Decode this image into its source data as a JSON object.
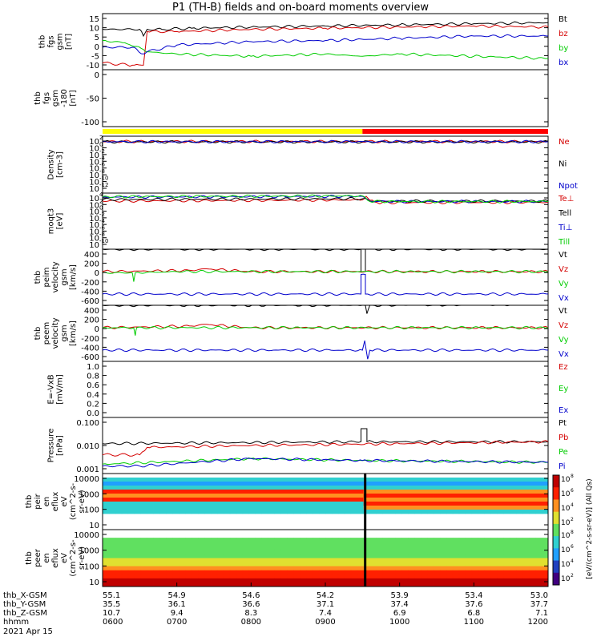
{
  "title": "P1 (TH-B) fields and on-board moments overview",
  "date": "2021 Apr 15",
  "colors": {
    "black": "#000000",
    "red": "#d40000",
    "green": "#00cc00",
    "blue": "#0000cc",
    "yellow": "#ffff00",
    "barred": "#ff0000"
  },
  "chart_data": [
    {
      "type": "line",
      "panel": "fgs",
      "ylabel": [
        "thb",
        "fgs",
        "gsm",
        "[nT]"
      ],
      "ylim": [
        -10,
        15
      ],
      "yticks": [
        "15",
        "10",
        "5",
        "0",
        "-5",
        "-10"
      ],
      "series": [
        {
          "name": "Bt",
          "color": "black",
          "x": [
            6.0,
            6.5,
            6.55,
            6.6,
            6.8,
            7.2,
            8.0,
            9.0,
            10.0,
            11.0,
            12.0
          ],
          "y": [
            8,
            8,
            5,
            8,
            8,
            8.5,
            9,
            9.5,
            10,
            10.5,
            11
          ]
        },
        {
          "name": "bz",
          "color": "red",
          "x": [
            6.0,
            6.4,
            6.55,
            6.6,
            7.0,
            8.0,
            9.0,
            10.0,
            11.0,
            12.0
          ],
          "y": [
            -7,
            -8,
            -8,
            7,
            7,
            8,
            8.5,
            9,
            9.5,
            9
          ]
        },
        {
          "name": "by",
          "color": "green",
          "x": [
            6.0,
            6.3,
            6.55,
            6.6,
            7.0,
            8.0,
            9.0,
            9.5,
            10.0,
            11.0,
            12.0
          ],
          "y": [
            3,
            2,
            -1,
            -2,
            -3,
            -4,
            -3,
            -4,
            -3,
            -4,
            -5
          ]
        },
        {
          "name": "bx",
          "color": "blue",
          "x": [
            6.0,
            6.4,
            6.55,
            6.6,
            7.0,
            8.0,
            9.0,
            10.0,
            11.0,
            12.0
          ],
          "y": [
            0,
            0,
            -3,
            -2,
            1,
            2.5,
            3,
            4,
            5,
            5
          ]
        }
      ]
    },
    {
      "type": "line",
      "panel": "fgs-sm",
      "ylabel": [
        "thb",
        "fgs",
        "gsm",
        "-180",
        "[nT]"
      ],
      "ylim": [
        -125,
        25
      ],
      "yticks": [
        "0",
        "-50",
        "-100"
      ],
      "series": []
    },
    {
      "type": "bar",
      "panel": "mode-bar",
      "segments": [
        {
          "from": 6.0,
          "to": 9.5,
          "color": "yellow"
        },
        {
          "from": 9.5,
          "to": 12.0,
          "color": "barred"
        }
      ]
    },
    {
      "type": "line",
      "panel": "density",
      "log": true,
      "ylabel": [
        "Density",
        "[cm-3]"
      ],
      "ylim": [
        -12,
        2
      ],
      "yticks": [
        "10",
        "10",
        "10",
        "10",
        "10",
        "10",
        "10",
        "10"
      ],
      "ytick_exponents": [
        "2",
        "0",
        "-2",
        "-4",
        "-6",
        "-8",
        "-10",
        "-12"
      ],
      "series": [
        {
          "name": "Ne",
          "color": "red",
          "x": [
            6.0,
            12.0
          ],
          "y": [
            0.7,
            0.7
          ]
        },
        {
          "name": "Ni",
          "color": "black",
          "x": [
            6.0,
            12.0
          ],
          "y": [
            0.6,
            0.6
          ]
        },
        {
          "name": "Npot",
          "color": "blue",
          "x": [
            6.0,
            12.0
          ],
          "y": [
            0.65,
            0.65
          ]
        }
      ]
    },
    {
      "type": "line",
      "panel": "temp",
      "log": true,
      "ylabel": [
        "moqt3",
        "[eV]"
      ],
      "ylim": [
        -10,
        4
      ],
      "yticks": [
        "10",
        "10",
        "10",
        "10",
        "10",
        "10",
        "10",
        "10"
      ],
      "ytick_exponents": [
        "4",
        "2",
        "0",
        "-2",
        "-4",
        "-6",
        "-8",
        "-10"
      ],
      "series": [
        {
          "name": "Te⊥",
          "color": "red",
          "x": [
            6.0,
            9.5,
            9.55,
            9.6,
            9.7,
            12.0
          ],
          "y": [
            2.0,
            2.3,
            3.2,
            2.2,
            1.6,
            1.7
          ]
        },
        {
          "name": "Tell",
          "color": "black",
          "x": [
            6.0,
            9.5,
            9.6,
            12.0
          ],
          "y": [
            2.4,
            2.6,
            2.0,
            2.0
          ]
        },
        {
          "name": "Ti⊥",
          "color": "blue",
          "x": [
            6.0,
            9.5,
            9.6,
            9.7,
            12.0
          ],
          "y": [
            3.0,
            3.2,
            2.0,
            1.9,
            1.9
          ]
        },
        {
          "name": "Till",
          "color": "green",
          "x": [
            6.0,
            9.5,
            9.6,
            12.0
          ],
          "y": [
            3.1,
            3.3,
            1.9,
            1.9
          ]
        }
      ]
    },
    {
      "type": "line",
      "panel": "peim",
      "ylabel": [
        "thb",
        "peim",
        "velocity",
        "gsm",
        "[km/s]"
      ],
      "ylim": [
        -600,
        400
      ],
      "yticks": [
        "400",
        "200",
        "0",
        "-200",
        "-400",
        "-600"
      ],
      "series": [
        {
          "name": "Vt",
          "color": "black",
          "x": [
            6.0,
            9.48,
            9.48,
            9.54,
            9.54,
            12.0
          ],
          "y": [
            400,
            400,
            0,
            0,
            400,
            400
          ]
        },
        {
          "name": "Vz",
          "color": "red",
          "x": [
            6.0,
            7.2,
            7.4,
            8.0,
            12.0
          ],
          "y": [
            0,
            20,
            50,
            0,
            0
          ]
        },
        {
          "name": "Vy",
          "color": "green",
          "x": [
            6.0,
            6.4,
            6.42,
            6.44,
            7.0,
            12.0
          ],
          "y": [
            -20,
            -20,
            -180,
            -20,
            0,
            0
          ]
        },
        {
          "name": "Vx",
          "color": "blue",
          "x": [
            6.0,
            9.48,
            9.48,
            9.54,
            9.54,
            12.0
          ],
          "y": [
            -400,
            -400,
            -50,
            -50,
            -400,
            -400
          ]
        }
      ]
    },
    {
      "type": "line",
      "panel": "peem",
      "ylabel": [
        "thb",
        "peem",
        "velocity",
        "gsm",
        "[km/s]"
      ],
      "ylim": [
        -600,
        400
      ],
      "yticks": [
        "400",
        "200",
        "0",
        "-200",
        "-400",
        "-600"
      ],
      "series": [
        {
          "name": "Vt",
          "color": "black",
          "x": [
            6.0,
            9.5,
            9.52,
            9.56,
            9.6,
            12.0
          ],
          "y": [
            400,
            400,
            560,
            250,
            400,
            420
          ]
        },
        {
          "name": "Vz",
          "color": "red",
          "x": [
            6.0,
            7.2,
            7.4,
            8.0,
            12.0
          ],
          "y": [
            0,
            30,
            60,
            0,
            0
          ]
        },
        {
          "name": "Vy",
          "color": "green",
          "x": [
            6.0,
            6.42,
            6.44,
            6.46,
            12.0
          ],
          "y": [
            0,
            0,
            -140,
            0,
            0
          ]
        },
        {
          "name": "Vx",
          "color": "blue",
          "x": [
            6.0,
            9.5,
            9.53,
            9.57,
            9.6,
            12.0
          ],
          "y": [
            -400,
            -400,
            -230,
            -560,
            -400,
            -400
          ]
        }
      ]
    },
    {
      "type": "line",
      "panel": "efield",
      "ylabel": [
        "E=-VxB",
        "[mV/m]"
      ],
      "ylim": [
        0,
        1.0
      ],
      "yticks": [
        "1.0",
        "0.8",
        "0.6",
        "0.4",
        "0.2",
        "0.0"
      ],
      "series": [],
      "legend": [
        {
          "name": "Ez",
          "color": "red"
        },
        {
          "name": "Ey",
          "color": "green"
        },
        {
          "name": "Ex",
          "color": "blue"
        }
      ]
    },
    {
      "type": "line",
      "panel": "pressure",
      "log": true,
      "ylabel": [
        "Pressure",
        "[nPa]"
      ],
      "ylim": [
        -3,
        0
      ],
      "yticks": [
        "0.100",
        "0.010",
        "0.001"
      ],
      "series": [
        {
          "name": "Pt",
          "color": "black",
          "x": [
            6.0,
            9.48,
            9.48,
            9.56,
            9.56,
            12.0
          ],
          "y": [
            -1.4,
            -1.3,
            -0.6,
            -0.6,
            -1.3,
            -1.3
          ]
        },
        {
          "name": "Pb",
          "color": "red",
          "x": [
            6.0,
            6.5,
            6.6,
            8.0,
            10.0,
            12.0
          ],
          "y": [
            -2.0,
            -2.0,
            -1.6,
            -1.5,
            -1.4,
            -1.3
          ]
        },
        {
          "name": "Pe",
          "color": "green",
          "x": [
            6.0,
            8.0,
            9.5,
            12.0
          ],
          "y": [
            -2.5,
            -2.2,
            -2.3,
            -2.4
          ]
        },
        {
          "name": "Pi",
          "color": "blue",
          "x": [
            6.0,
            6.5,
            8.0,
            9.5,
            12.0
          ],
          "y": [
            -2.6,
            -2.6,
            -2.2,
            -2.3,
            -2.4
          ]
        }
      ]
    },
    {
      "type": "heatmap",
      "panel": "peir",
      "ylabel": [
        "thb",
        "peir",
        "en",
        "eflux",
        "eV",
        "(cm^2-s-",
        "sr-eV)"
      ],
      "yticks": [
        "10000",
        "1000",
        "100",
        "10"
      ],
      "colorbar_ticks": [
        "10",
        "10",
        "10",
        "10"
      ],
      "colorbar_exponents": [
        "8",
        "6",
        "4",
        "2"
      ],
      "colorbar_label": "[eV/(cm^2-s-sr-eV)] (All Qs)"
    },
    {
      "type": "heatmap",
      "panel": "peer",
      "ylabel": [
        "thb",
        "peer",
        "en",
        "eflux",
        "eV",
        "(cm^2-s-",
        "sr-eV)"
      ],
      "yticks": [
        "10000",
        "1000",
        "100",
        "10"
      ],
      "colorbar_ticks": [
        "10",
        "10",
        "10",
        "10"
      ],
      "colorbar_exponents": [
        "8",
        "6",
        "4",
        "2"
      ],
      "colorbar_label": "[eV/(cm^2-s-sr-eV)]"
    }
  ],
  "xaxis": {
    "rows": [
      {
        "label": "thb_X-GSM",
        "values": [
          "55.1",
          "54.9",
          "54.6",
          "54.2",
          "53.9",
          "53.4",
          "53.0"
        ]
      },
      {
        "label": "thb_Y-GSM",
        "values": [
          "35.5",
          "36.1",
          "36.6",
          "37.1",
          "37.4",
          "37.6",
          "37.7"
        ]
      },
      {
        "label": "thb_Z-GSM",
        "values": [
          "10.7",
          "9.4",
          "8.3",
          "7.4",
          "6.9",
          "6.8",
          "7.1"
        ]
      },
      {
        "label": "hhmm",
        "values": [
          "0600",
          "0700",
          "0800",
          "0900",
          "1000",
          "1100",
          "1200"
        ]
      }
    ]
  }
}
